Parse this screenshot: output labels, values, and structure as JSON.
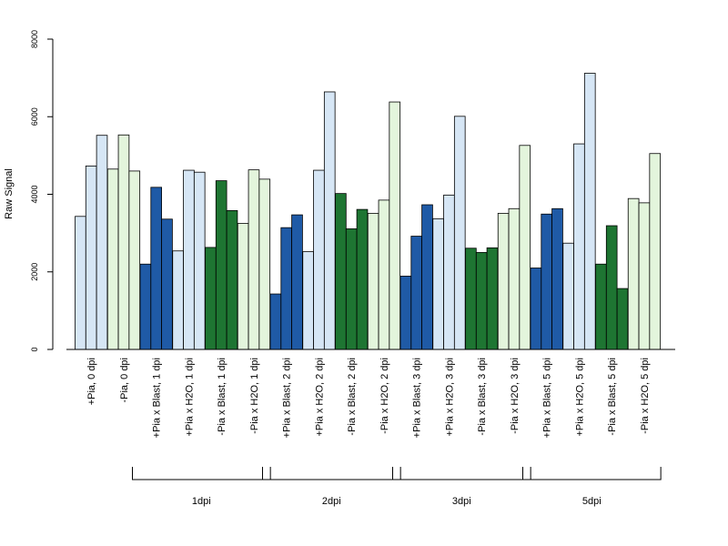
{
  "chart_data": {
    "type": "bar",
    "title": "",
    "xlabel": "",
    "ylabel": "Raw Signal",
    "ylim": [
      0,
      8000
    ],
    "yticks": [
      0,
      2000,
      4000,
      6000,
      8000
    ],
    "grid": false,
    "legend": "none",
    "colors": {
      "dark_blue": "#1f5aa6",
      "light_blue": "#d6e6f5",
      "dark_green": "#1e7532",
      "light_green": "#e3f5dc",
      "outline": "#000000"
    },
    "categories": [
      {
        "label": "+Pia, 0 dpi",
        "color": "light_blue",
        "values": [
          3430,
          4730,
          5520
        ]
      },
      {
        "label": "-Pia, 0 dpi",
        "color": "light_green",
        "values": [
          4650,
          5530,
          4600
        ]
      },
      {
        "label": "+Pia x Blast, 1 dpi",
        "color": "dark_blue",
        "values": [
          2200,
          4180,
          3360
        ]
      },
      {
        "label": "+Pia x H2O, 1 dpi",
        "color": "light_blue",
        "values": [
          2540,
          4620,
          4570
        ]
      },
      {
        "label": "-Pia x Blast, 1 dpi",
        "color": "dark_green",
        "values": [
          2630,
          4350,
          3580
        ]
      },
      {
        "label": "-Pia x H2O, 1 dpi",
        "color": "light_green",
        "values": [
          3250,
          4630,
          4390
        ]
      },
      {
        "label": "+Pia x Blast, 2 dpi",
        "color": "dark_blue",
        "values": [
          1430,
          3140,
          3470
        ]
      },
      {
        "label": "+Pia x H2O, 2 dpi",
        "color": "light_blue",
        "values": [
          2520,
          4620,
          6640
        ]
      },
      {
        "label": "-Pia x Blast, 2 dpi",
        "color": "dark_green",
        "values": [
          4020,
          3110,
          3610
        ]
      },
      {
        "label": "-Pia x H2O, 2 dpi",
        "color": "light_green",
        "values": [
          3510,
          3850,
          6380
        ]
      },
      {
        "label": "+Pia x Blast, 3 dpi",
        "color": "dark_blue",
        "values": [
          1890,
          2920,
          3730
        ]
      },
      {
        "label": "+Pia x H2O, 3 dpi",
        "color": "light_blue",
        "values": [
          3370,
          3980,
          6010
        ]
      },
      {
        "label": "-Pia x Blast, 3 dpi",
        "color": "dark_green",
        "values": [
          2610,
          2500,
          2620
        ]
      },
      {
        "label": "-Pia x H2O, 3 dpi",
        "color": "light_green",
        "values": [
          3510,
          3630,
          5260
        ]
      },
      {
        "label": "+Pia x Blast, 5 dpi",
        "color": "dark_blue",
        "values": [
          2100,
          3490,
          3630
        ]
      },
      {
        "label": "+Pia x H2O, 5 dpi",
        "color": "light_blue",
        "values": [
          2740,
          5300,
          7120
        ]
      },
      {
        "label": "-Pia x Blast, 5 dpi",
        "color": "dark_green",
        "values": [
          2200,
          3190,
          1570
        ]
      },
      {
        "label": "-Pia x H2O, 5 dpi",
        "color": "light_green",
        "values": [
          3890,
          3780,
          5050
        ]
      }
    ],
    "groups": [
      {
        "label": "1dpi",
        "from": 2,
        "to": 5
      },
      {
        "label": "2dpi",
        "from": 6,
        "to": 9
      },
      {
        "label": "3dpi",
        "from": 10,
        "to": 13
      },
      {
        "label": "5dpi",
        "from": 14,
        "to": 17
      }
    ]
  }
}
